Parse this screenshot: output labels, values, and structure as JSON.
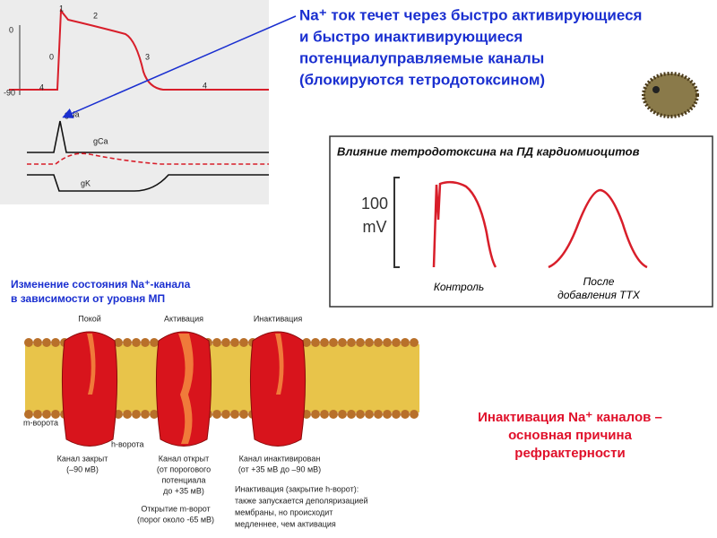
{
  "ap_panel": {
    "phases": [
      "1",
      "2",
      "0",
      "3",
      "4",
      "4"
    ],
    "axis": [
      "0",
      "-90"
    ],
    "currents": [
      "gNa",
      "gCa",
      "gK"
    ]
  },
  "heading": [
    "Na⁺ ток течет через быстро активирующиеся",
    "и быстро инактивирующиеся",
    "потенциалуправляемые каналы",
    "(блокируются тетродотоксином)"
  ],
  "ttx_box": {
    "title": "Влияние тетродотоксина на ПД кардиомиоцитов",
    "scale": [
      "100",
      "mV"
    ],
    "control": "Контроль",
    "after": [
      "После",
      "добавления TTX"
    ]
  },
  "channel": {
    "title": [
      "Изменение состояния Na⁺-канала",
      "в зависимости от уровня МП"
    ],
    "states": [
      "Покой",
      "Активация",
      "Инактивация"
    ],
    "gates": [
      "m-ворота",
      "h-ворота"
    ],
    "captions": [
      [
        "Канал закрыт",
        "(–90 мВ)"
      ],
      [
        "Канал открыт",
        "(от порогового",
        "потенциала",
        "до +35 мВ)"
      ],
      [
        "Канал инактивирован",
        "(от +35 мВ до –90 мВ)"
      ]
    ],
    "m_note": [
      "Открытие m-ворот",
      "(порог около -65 мВ)"
    ],
    "h_note": [
      "Инактивация (закрытие h-ворот):",
      "также запускается деполяризацией",
      "мембраны, но происходит",
      "медленнее, чем активация"
    ]
  },
  "conclusion": [
    "Инактивация Na⁺ каналов –",
    "основная причина",
    "рефрактерности"
  ]
}
